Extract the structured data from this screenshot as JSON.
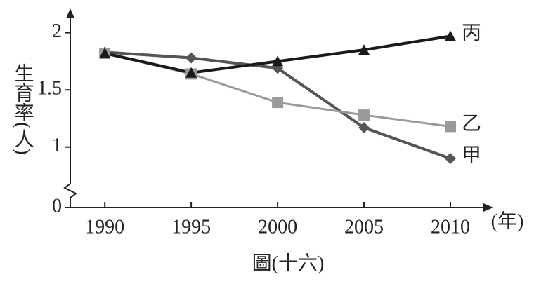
{
  "chart_data": {
    "type": "line",
    "title": "圖(十六)",
    "y_label": "生育率(人)",
    "x_unit": "(年)",
    "x": [
      1990,
      1995,
      2000,
      2005,
      2010
    ],
    "xlim": [
      1988,
      2012.4
    ],
    "xticks": [
      1990,
      1995,
      2000,
      2005,
      2010
    ],
    "ylim": [
      0,
      2.2
    ],
    "yticks": [
      0,
      1,
      1.5,
      2
    ],
    "y_break": [
      0,
      0.6
    ],
    "series": [
      {
        "name": "甲",
        "color": "#555555",
        "marker": "diamond",
        "values": [
          1.83,
          1.78,
          1.69,
          1.17,
          0.9
        ]
      },
      {
        "name": "乙",
        "color": "#9a9a9a",
        "marker": "square",
        "values": [
          1.82,
          1.64,
          1.39,
          1.28,
          1.18
        ]
      },
      {
        "name": "丙",
        "color": "#1a1a1a",
        "marker": "triangle",
        "values": [
          1.82,
          1.65,
          1.75,
          1.85,
          1.97
        ]
      }
    ]
  }
}
